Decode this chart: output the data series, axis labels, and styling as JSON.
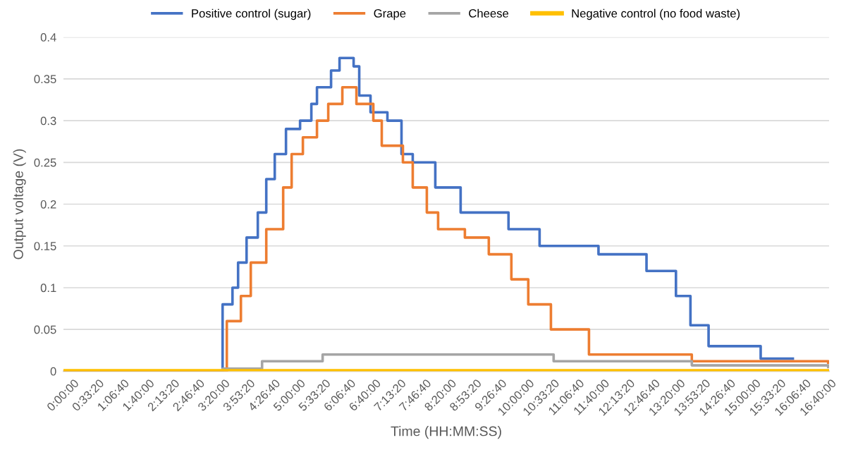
{
  "chart_data": {
    "type": "step",
    "xlabel": "Time (HH:MM:SS)",
    "ylabel": "Output voltage (V)",
    "xlim": [
      0,
      16.9
    ],
    "ylim": [
      0,
      0.4
    ],
    "xticks": [
      {
        "value": 0,
        "label": "0:00:00"
      },
      {
        "value": 0.5556,
        "label": "0:33:20"
      },
      {
        "value": 1.1111,
        "label": "1:06:40"
      },
      {
        "value": 1.6667,
        "label": "1:40:00"
      },
      {
        "value": 2.2222,
        "label": "2:13:20"
      },
      {
        "value": 2.7778,
        "label": "2:46:40"
      },
      {
        "value": 3.3333,
        "label": "3:20:00"
      },
      {
        "value": 3.8889,
        "label": "3:53:20"
      },
      {
        "value": 4.4444,
        "label": "4:26:40"
      },
      {
        "value": 5,
        "label": "5:00:00"
      },
      {
        "value": 5.5556,
        "label": "5:33:20"
      },
      {
        "value": 6.1111,
        "label": "6:06:40"
      },
      {
        "value": 6.6667,
        "label": "6:40:00"
      },
      {
        "value": 7.2222,
        "label": "7:13:20"
      },
      {
        "value": 7.7778,
        "label": "7:46:40"
      },
      {
        "value": 8.3333,
        "label": "8:20:00"
      },
      {
        "value": 8.8889,
        "label": "8:53:20"
      },
      {
        "value": 9.4444,
        "label": "9:26:40"
      },
      {
        "value": 10,
        "label": "10:00:00"
      },
      {
        "value": 10.5556,
        "label": "10:33:20"
      },
      {
        "value": 11.1111,
        "label": "11:06:40"
      },
      {
        "value": 11.6667,
        "label": "11:40:00"
      },
      {
        "value": 12.2222,
        "label": "12:13:20"
      },
      {
        "value": 12.7778,
        "label": "12:46:40"
      },
      {
        "value": 13.3333,
        "label": "13:20:00"
      },
      {
        "value": 13.8889,
        "label": "13:53:20"
      },
      {
        "value": 14.4444,
        "label": "14:26:40"
      },
      {
        "value": 15,
        "label": "15:00:00"
      },
      {
        "value": 15.5556,
        "label": "15:33:20"
      },
      {
        "value": 16.1111,
        "label": "16:06:40"
      },
      {
        "value": 16.6667,
        "label": "16:40:00"
      }
    ],
    "yticks": [
      0,
      0.05,
      0.1,
      0.15,
      0.2,
      0.25,
      0.3,
      0.35,
      0.4
    ],
    "grid": "y",
    "legend": "top",
    "line_style": "solid",
    "series": [
      {
        "name": "Positive control (sugar)",
        "color": "#4472c4",
        "x": [
          0,
          3.513,
          3.731,
          3.855,
          4.042,
          4.29,
          4.477,
          4.664,
          4.912,
          5.223,
          5.472,
          5.596,
          5.907,
          6.094,
          6.405,
          6.529,
          6.778,
          7.151,
          7.462,
          7.71,
          8.208,
          8.767,
          9.824,
          10.51,
          11.81,
          12.87,
          13.52,
          13.84,
          14.24,
          15.39,
          16.1
        ],
        "values": [
          0,
          0.08,
          0.1,
          0.13,
          0.16,
          0.19,
          0.23,
          0.26,
          0.29,
          0.3,
          0.32,
          0.34,
          0.36,
          0.375,
          0.365,
          0.33,
          0.31,
          0.3,
          0.26,
          0.25,
          0.22,
          0.19,
          0.17,
          0.15,
          0.14,
          0.12,
          0.09,
          0.055,
          0.03,
          0.015,
          0.015
        ]
      },
      {
        "name": "Grape",
        "color": "#ed7d31",
        "x": [
          0,
          3.606,
          3.917,
          4.135,
          4.477,
          4.85,
          5.037,
          5.285,
          5.596,
          5.845,
          6.156,
          6.467,
          6.84,
          7.026,
          7.493,
          7.71,
          8.021,
          8.27,
          8.861,
          9.389,
          9.887,
          10.26,
          10.76,
          11.6,
          13.87,
          16.88
        ],
        "values": [
          0,
          0.06,
          0.09,
          0.13,
          0.17,
          0.22,
          0.26,
          0.28,
          0.3,
          0.32,
          0.34,
          0.32,
          0.3,
          0.27,
          0.25,
          0.22,
          0.19,
          0.17,
          0.16,
          0.14,
          0.11,
          0.08,
          0.05,
          0.02,
          0.012,
          0.01
        ]
      },
      {
        "name": "Cheese",
        "color": "#a5a5a5",
        "x": [
          0,
          3.513,
          4.384,
          5.721,
          10.82,
          13.87,
          16.88
        ],
        "values": [
          0,
          0.003,
          0.012,
          0.02,
          0.012,
          0.007,
          0.005
        ]
      },
      {
        "name": "Negative control (no food waste)",
        "color": "#ffc000",
        "x": [
          0,
          16.88
        ],
        "values": [
          0,
          0
        ]
      }
    ]
  }
}
